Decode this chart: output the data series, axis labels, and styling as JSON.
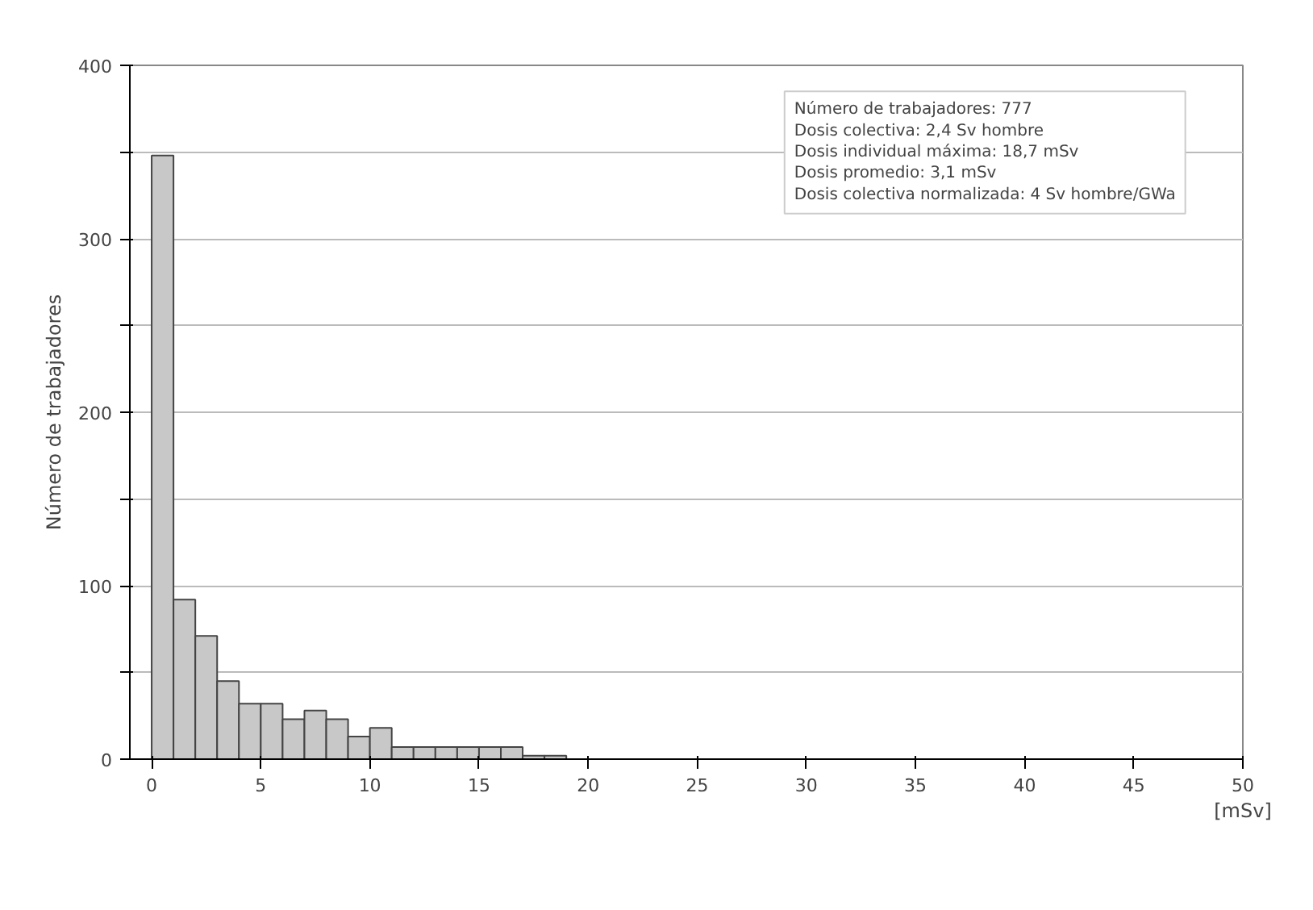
{
  "chart_data": {
    "type": "histogram",
    "ylabel": "Número de trabajadores",
    "xlabel": "[mSv]",
    "bins": [
      0,
      1,
      2,
      3,
      4,
      5,
      6,
      7,
      8,
      9,
      10,
      11,
      12,
      13,
      14,
      15,
      16,
      17,
      18,
      19
    ],
    "values": [
      348,
      92,
      71,
      45,
      32,
      32,
      23,
      28,
      23,
      13,
      18,
      7,
      7,
      7,
      7,
      7,
      7,
      2,
      2
    ],
    "color": "#c8c8c8",
    "xlim": [
      -1,
      50
    ],
    "xticks": [
      0,
      5,
      10,
      15,
      20,
      25,
      30,
      35,
      40,
      45,
      50
    ],
    "ylim": [
      0,
      400
    ],
    "yticks": [
      0,
      {
        "value": 50,
        "label": null
      },
      100,
      {
        "value": 150,
        "label": null
      },
      200,
      {
        "value": 250,
        "label": null
      },
      300,
      {
        "value": 350,
        "label": null
      },
      400
    ],
    "grid": "y",
    "annotations": [
      "Número de trabajadores: 777",
      "Dosis colectiva: 2,4 Sv hombre",
      "Dosis individual máxima: 18,7 mSv",
      "Dosis promedio: 3,1 mSv",
      "Dosis colectiva normalizada: 4 Sv hombre/GWa"
    ]
  }
}
